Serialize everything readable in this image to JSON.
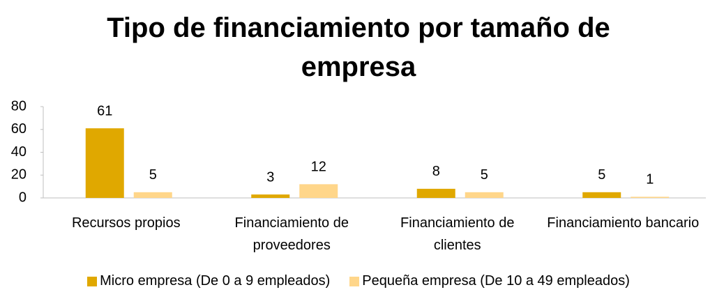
{
  "chart_data": {
    "type": "bar",
    "title": "Tipo de financiamiento por tamaño de empresa",
    "categories": [
      "Recursos propios",
      "Financiamiento de proveedores",
      "Financiamiento de clientes",
      "Financiamiento bancario"
    ],
    "series": [
      {
        "name": "Micro empresa (De 0 a 9 empleados)",
        "color": "#e0a800",
        "values": [
          61,
          3,
          8,
          5
        ]
      },
      {
        "name": "Pequeña empresa (De 10 a 49 empleados)",
        "color": "#ffd68a",
        "values": [
          5,
          12,
          5,
          1
        ]
      }
    ],
    "ylim": [
      0,
      80
    ],
    "yticks": [
      0,
      20,
      40,
      60,
      80
    ],
    "grid": false,
    "legend": "bottom"
  }
}
